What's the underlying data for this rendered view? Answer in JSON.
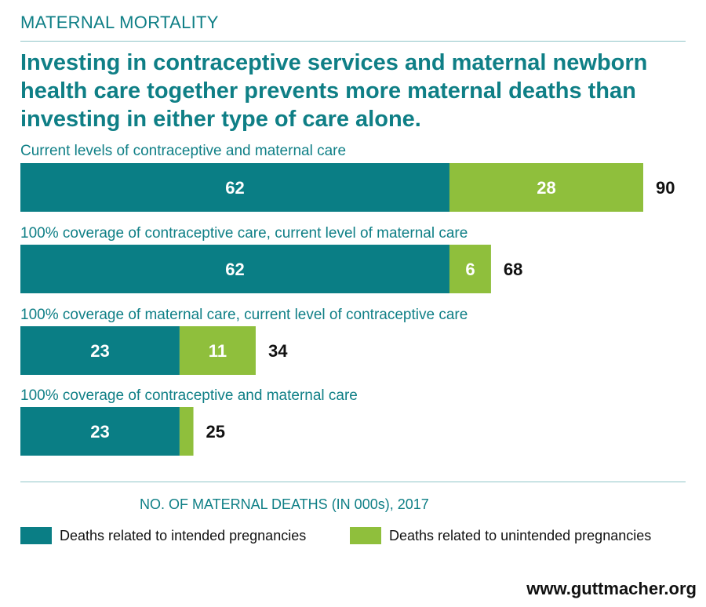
{
  "kicker": "MATERNAL MORTALITY",
  "headline": "Investing in contraceptive services and maternal newborn health care together prevents more maternal deaths than investing in either type of care alone.",
  "colors": {
    "intended": "#0a7e85",
    "unintended": "#8fbf3c",
    "accent": "#0f7f86"
  },
  "chart_data": {
    "type": "bar",
    "orientation": "horizontal",
    "stacked": true,
    "categories": [
      "Current levels of contraceptive and maternal care",
      "100% coverage of contraceptive care, current level of maternal care",
      "100% coverage of maternal care, current level of contraceptive care",
      "100% coverage of contraceptive and maternal care"
    ],
    "series": [
      {
        "name": "Deaths related to intended pregnancies",
        "values": [
          62,
          62,
          23,
          23
        ],
        "value_labels": [
          "62",
          "62",
          "23",
          "23"
        ]
      },
      {
        "name": "Deaths related to unintended pregnancies",
        "values": [
          28,
          6,
          11,
          2
        ],
        "value_labels": [
          "28",
          "6",
          "11",
          ""
        ]
      }
    ],
    "totals": [
      "90",
      "68",
      "34",
      "25"
    ],
    "xlabel": "NO. OF MATERNAL DEATHS (IN 000s), 2017",
    "xlim": [
      0,
      90
    ]
  },
  "source": "www.guttmacher.org"
}
